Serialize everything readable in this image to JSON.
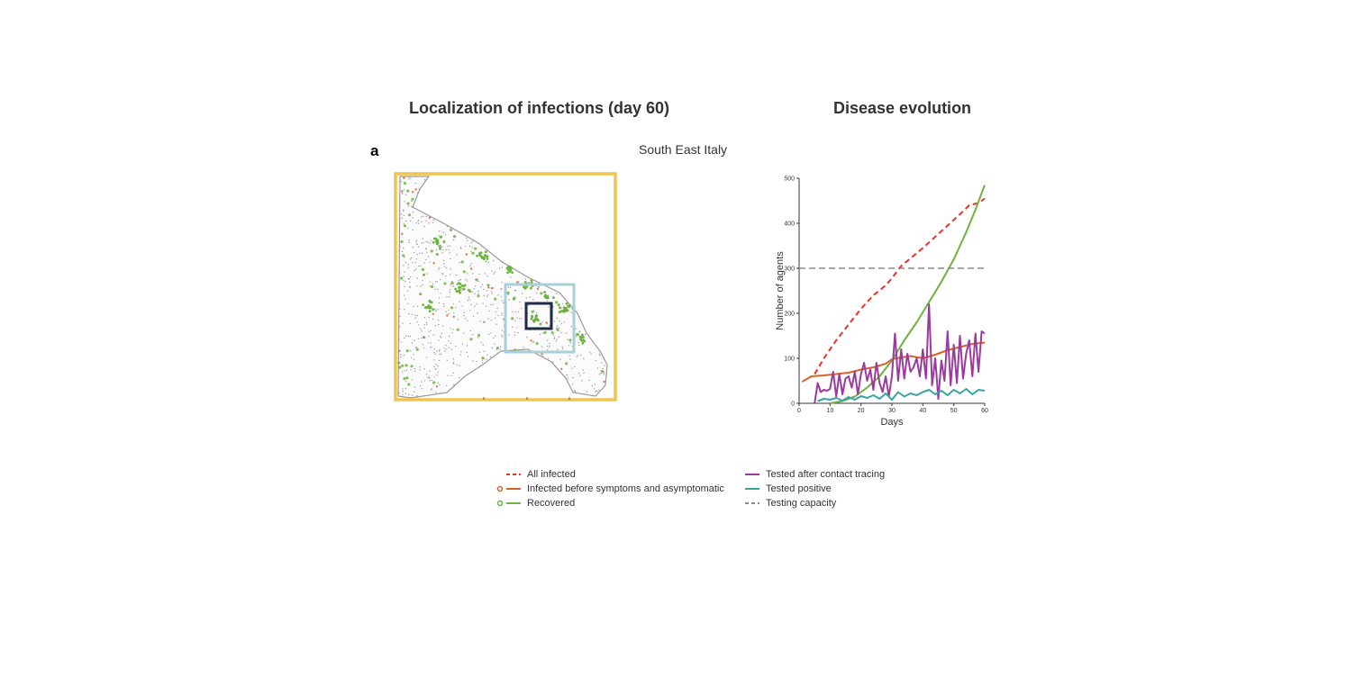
{
  "headings": {
    "map": "Localization of infections (day 60)",
    "chart": "Disease evolution"
  },
  "panel_letter": "a",
  "region_label": "South East Italy",
  "colors": {
    "map_frame": "#f0c450",
    "zoom_box_outer": "#a8d0d8",
    "zoom_box_inner": "#1f2a44",
    "map_land_dots": "#8a8a8a",
    "map_recovered": "#6cb33f",
    "map_infected": "#d9622b"
  },
  "legend": [
    {
      "label": "All infected",
      "color": "#e8322a",
      "style": "dashed",
      "marker": false
    },
    {
      "label": "Infected before symptoms and asymptomatic",
      "color": "#d9622b",
      "style": "solid",
      "marker": true
    },
    {
      "label": "Recovered",
      "color": "#6cb33f",
      "style": "solid",
      "marker": true
    },
    {
      "label": "Tested after contact tracing",
      "color": "#9b3b9e",
      "style": "solid",
      "marker": false
    },
    {
      "label": "Tested positive",
      "color": "#3aa3a8",
      "style": "solid",
      "marker": false
    },
    {
      "label": "Testing capacity",
      "color": "#8a8a8a",
      "style": "dashed",
      "marker": false
    }
  ],
  "chart_data": {
    "type": "line",
    "title": "Disease evolution",
    "xlabel": "Days",
    "ylabel": "Number of agents",
    "xlim": [
      0,
      60
    ],
    "ylim": [
      0,
      500
    ],
    "xticks": [
      0,
      10,
      20,
      30,
      40,
      50,
      60
    ],
    "yticks": [
      0,
      100,
      200,
      300,
      400,
      500
    ],
    "grid": false,
    "series": [
      {
        "name": "All infected",
        "color": "#e8322a",
        "dash": "6,4",
        "x": [
          5,
          8,
          12,
          16,
          20,
          24,
          28,
          30,
          33,
          36,
          40,
          44,
          48,
          52,
          55,
          58,
          60
        ],
        "y": [
          65,
          100,
          140,
          175,
          210,
          240,
          262,
          278,
          305,
          322,
          345,
          370,
          395,
          420,
          440,
          445,
          455
        ]
      },
      {
        "name": "Infected before symptoms and asymptomatic",
        "color": "#d9622b",
        "dash": "",
        "x": [
          1,
          4,
          8,
          12,
          16,
          20,
          24,
          28,
          30,
          33,
          36,
          40,
          44,
          48,
          52,
          56,
          60
        ],
        "y": [
          48,
          60,
          62,
          65,
          68,
          75,
          80,
          88,
          98,
          102,
          105,
          100,
          108,
          118,
          125,
          132,
          135
        ]
      },
      {
        "name": "Recovered",
        "color": "#6cb33f",
        "dash": "",
        "x": [
          10,
          14,
          18,
          22,
          26,
          30,
          34,
          38,
          42,
          46,
          50,
          54,
          57,
          60
        ],
        "y": [
          0,
          5,
          15,
          35,
          60,
          95,
          140,
          180,
          225,
          270,
          320,
          380,
          430,
          485
        ]
      },
      {
        "name": "Tested after contact tracing",
        "color": "#9b3b9e",
        "dash": "",
        "x": [
          5,
          6,
          7,
          8,
          9,
          10,
          11,
          12,
          13,
          14,
          15,
          16,
          17,
          18,
          19,
          20,
          21,
          22,
          23,
          24,
          25,
          26,
          27,
          28,
          29,
          30,
          31,
          32,
          33,
          34,
          35,
          36,
          37,
          38,
          39,
          40,
          41,
          42,
          43,
          44,
          45,
          46,
          47,
          48,
          49,
          50,
          51,
          52,
          53,
          54,
          55,
          56,
          57,
          58,
          59,
          60
        ],
        "y": [
          0,
          45,
          25,
          30,
          28,
          32,
          70,
          15,
          65,
          20,
          55,
          60,
          35,
          70,
          20,
          65,
          90,
          50,
          75,
          30,
          90,
          45,
          25,
          60,
          15,
          60,
          155,
          50,
          120,
          55,
          110,
          70,
          80,
          100,
          60,
          120,
          55,
          220,
          40,
          100,
          10,
          95,
          50,
          160,
          40,
          130,
          45,
          150,
          55,
          110,
          140,
          60,
          155,
          70,
          160,
          155
        ]
      },
      {
        "name": "Tested positive",
        "color": "#3aa3a8",
        "dash": "",
        "x": [
          6,
          8,
          10,
          12,
          14,
          16,
          18,
          20,
          22,
          24,
          26,
          28,
          30,
          32,
          34,
          36,
          38,
          40,
          42,
          44,
          46,
          48,
          50,
          52,
          54,
          56,
          58,
          60
        ],
        "y": [
          5,
          10,
          8,
          12,
          6,
          14,
          8,
          16,
          12,
          18,
          10,
          22,
          8,
          25,
          15,
          22,
          18,
          25,
          30,
          20,
          28,
          18,
          30,
          22,
          32,
          20,
          30,
          28
        ]
      },
      {
        "name": "Testing capacity",
        "color": "#8a8a8a",
        "dash": "7,4",
        "x": [
          0,
          60
        ],
        "y": [
          300,
          300
        ]
      }
    ]
  }
}
